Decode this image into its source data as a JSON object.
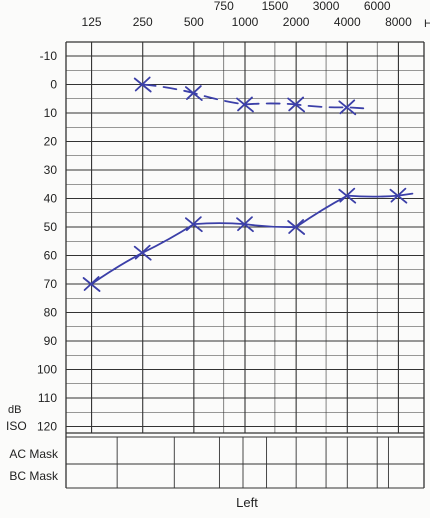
{
  "chart_data": {
    "type": "line",
    "title": "",
    "xlabel": "Left",
    "ylabel_top": "dB",
    "ylabel_bottom": "ISO",
    "x_unit": "Hz",
    "x_ticks_main": [
      "125",
      "250",
      "500",
      "1000",
      "2000",
      "4000",
      "8000"
    ],
    "x_ticks_mid": [
      "750",
      "1500",
      "3000",
      "6000"
    ],
    "y_ticks": [
      -10,
      0,
      10,
      20,
      30,
      40,
      50,
      60,
      70,
      80,
      90,
      100,
      110,
      120
    ],
    "ylim": [
      -10,
      120
    ],
    "y_inverted": true,
    "mask_rows": [
      "AC Mask",
      "BC Mask"
    ],
    "grid": true,
    "ink_color": "#3b3fa8",
    "series": [
      {
        "style": "dashed",
        "x": [
          "250",
          "500",
          "1000",
          "2000",
          "4000"
        ],
        "values": [
          0,
          3,
          7,
          7,
          8
        ]
      },
      {
        "style": "solid",
        "x": [
          "125",
          "250",
          "500",
          "1000",
          "2000",
          "4000",
          "8000"
        ],
        "values": [
          70,
          59,
          49,
          49,
          50,
          39,
          39
        ]
      }
    ]
  }
}
